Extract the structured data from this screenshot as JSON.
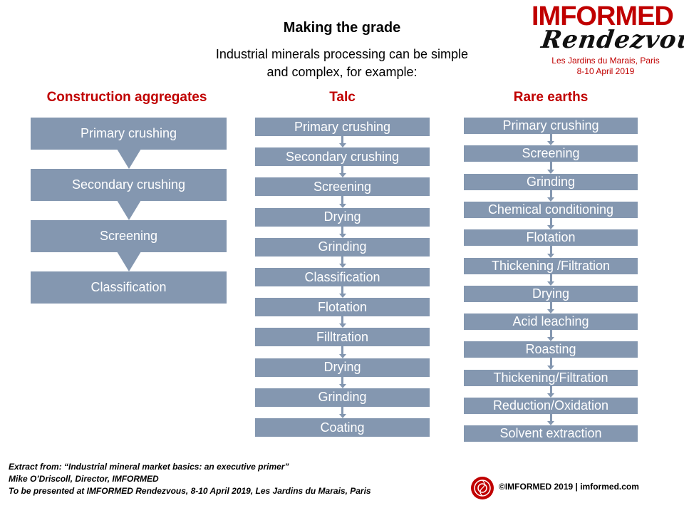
{
  "header": {
    "title": "Making the grade",
    "subtitle_line1": "Industrial minerals processing can be simple",
    "subtitle_line2": "and complex,  for example:"
  },
  "logo": {
    "brand": "IMFORMED",
    "script": "Rendezvous",
    "location": "Les Jardins du Marais, Paris",
    "dates": "8-10 April 2019"
  },
  "columns": [
    {
      "heading": "Construction aggregates",
      "steps": [
        "Primary crushing",
        "Secondary crushing",
        "Screening",
        "Classification"
      ]
    },
    {
      "heading": "Talc",
      "steps": [
        "Primary crushing",
        "Secondary crushing",
        "Screening",
        "Drying",
        "Grinding",
        "Classification",
        "Flotation",
        "Filltration",
        "Drying",
        "Grinding",
        "Coating"
      ]
    },
    {
      "heading": "Rare earths",
      "steps": [
        "Primary crushing",
        "Screening",
        "Grinding",
        "Chemical conditioning",
        "Flotation",
        "Thickening  /Filtration",
        "Drying",
        "Acid leaching",
        "Roasting",
        "Thickening/Filtration",
        "Reduction/Oxidation",
        "Solvent extraction"
      ]
    }
  ],
  "footer": {
    "line1": "Extract from: “Industrial mineral market basics: an executive primer”",
    "line2": "Mike O’Driscoll, Director, IMFORMED",
    "line3": "To be presented at IMFORMED Rendezvous, 8-10 April 2019, Les Jardins du Marais, Paris",
    "copyright": "©IMFORMED 2019  | imformed.com"
  },
  "colors": {
    "box": "#8497b0",
    "heading": "#c00000"
  }
}
